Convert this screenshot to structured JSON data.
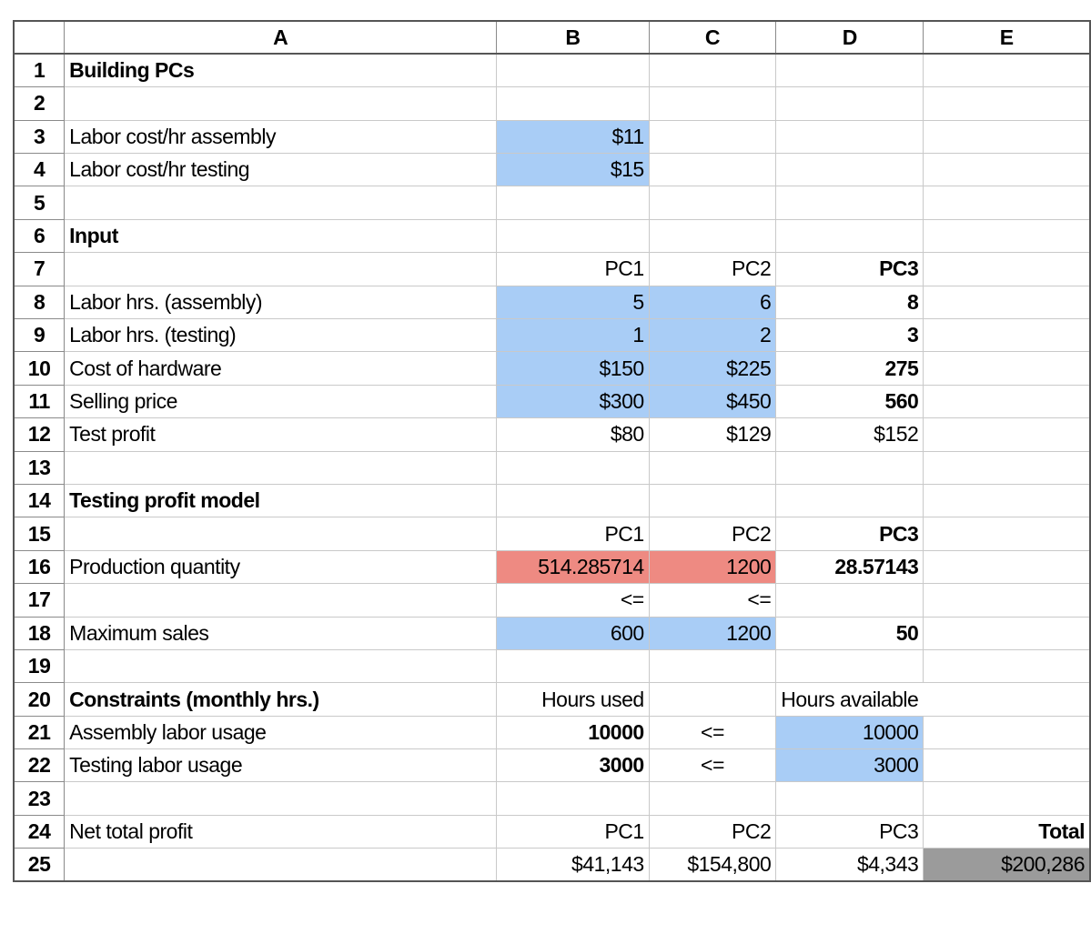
{
  "columns": [
    "A",
    "B",
    "C",
    "D",
    "E"
  ],
  "rows": [
    {
      "n": "1",
      "a": "Building PCs",
      "b": "",
      "c": "",
      "d": "",
      "e": ""
    },
    {
      "n": "2",
      "a": "",
      "b": "",
      "c": "",
      "d": "",
      "e": ""
    },
    {
      "n": "3",
      "a": "Labor cost/hr assembly",
      "b": "$11",
      "c": "",
      "d": "",
      "e": ""
    },
    {
      "n": "4",
      "a": "Labor cost/hr testing",
      "b": "$15",
      "c": "",
      "d": "",
      "e": ""
    },
    {
      "n": "5",
      "a": "",
      "b": "",
      "c": "",
      "d": "",
      "e": ""
    },
    {
      "n": "6",
      "a": "Input",
      "b": "",
      "c": "",
      "d": "",
      "e": ""
    },
    {
      "n": "7",
      "a": "",
      "b": "PC1",
      "c": "PC2",
      "d": "PC3",
      "e": ""
    },
    {
      "n": "8",
      "a": "Labor hrs. (assembly)",
      "b": "5",
      "c": "6",
      "d": "8",
      "e": ""
    },
    {
      "n": "9",
      "a": "Labor hrs. (testing)",
      "b": "1",
      "c": "2",
      "d": "3",
      "e": ""
    },
    {
      "n": "10",
      "a": "Cost of hardware",
      "b": "$150",
      "c": "$225",
      "d": "275",
      "e": ""
    },
    {
      "n": "11",
      "a": "Selling price",
      "b": "$300",
      "c": "$450",
      "d": "560",
      "e": ""
    },
    {
      "n": "12",
      "a": "Test profit",
      "b": "$80",
      "c": "$129",
      "d": "$152",
      "e": ""
    },
    {
      "n": "13",
      "a": "",
      "b": "",
      "c": "",
      "d": "",
      "e": ""
    },
    {
      "n": "14",
      "a": "Testing profit model",
      "b": "",
      "c": "",
      "d": "",
      "e": ""
    },
    {
      "n": "15",
      "a": "",
      "b": "PC1",
      "c": "PC2",
      "d": "PC3",
      "e": ""
    },
    {
      "n": "16",
      "a": "Production quantity",
      "b": "514.285714",
      "c": "1200",
      "d": "28.57143",
      "e": ""
    },
    {
      "n": "17",
      "a": "",
      "b": "<=",
      "c": "<=",
      "d": "",
      "e": ""
    },
    {
      "n": "18",
      "a": "Maximum sales",
      "b": "600",
      "c": "1200",
      "d": "50",
      "e": ""
    },
    {
      "n": "19",
      "a": "",
      "b": "",
      "c": "",
      "d": "",
      "e": ""
    },
    {
      "n": "20",
      "a": "Constraints (monthly hrs.)",
      "b": "Hours used",
      "c": "",
      "d": "Hours available",
      "e": ""
    },
    {
      "n": "21",
      "a": "Assembly labor usage",
      "b": "10000",
      "c": "<=",
      "d": "10000",
      "e": ""
    },
    {
      "n": "22",
      "a": "Testing labor usage",
      "b": "3000",
      "c": "<=",
      "d": "3000",
      "e": ""
    },
    {
      "n": "23",
      "a": "",
      "b": "",
      "c": "",
      "d": "",
      "e": ""
    },
    {
      "n": "24",
      "a": "Net total profit",
      "b": "PC1",
      "c": "PC2",
      "d": "PC3",
      "e": "Total"
    },
    {
      "n": "25",
      "a": "",
      "b": "$41,143",
      "c": "$154,800",
      "d": "$4,343",
      "e": "$200,286"
    }
  ],
  "colors": {
    "input_blue": "#a9cdf6",
    "changing_cell_red": "#ee8a82",
    "total_gray": "#9b9b9b"
  }
}
